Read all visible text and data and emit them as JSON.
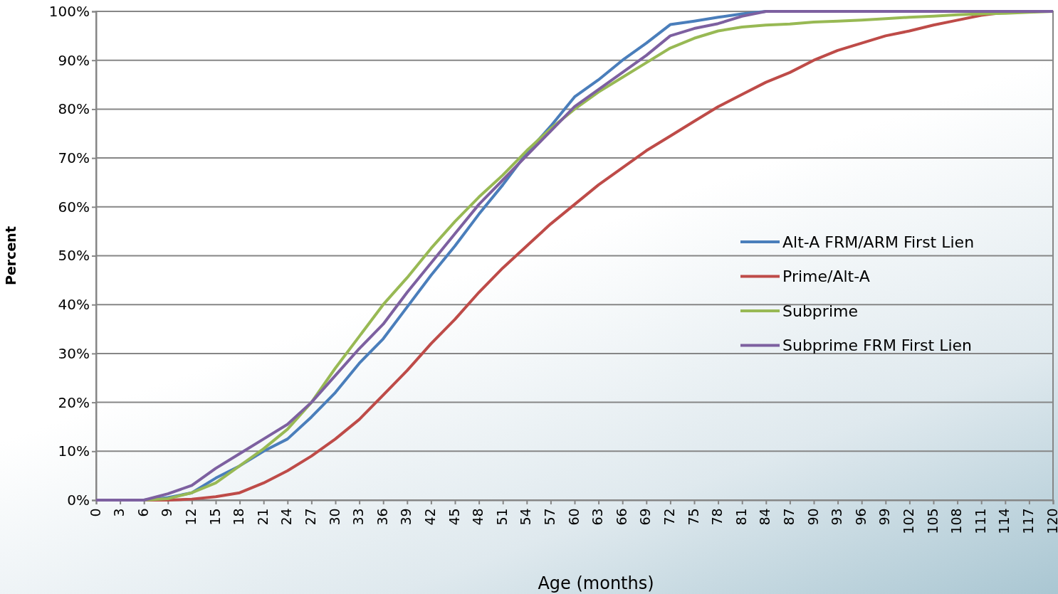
{
  "chart_data": {
    "type": "line",
    "xlabel": "Age (months)",
    "ylabel": "Percent",
    "x": [
      0,
      3,
      6,
      9,
      12,
      15,
      18,
      21,
      24,
      27,
      30,
      33,
      36,
      39,
      42,
      45,
      48,
      51,
      54,
      57,
      60,
      63,
      66,
      69,
      72,
      75,
      78,
      81,
      84,
      87,
      90,
      93,
      96,
      99,
      102,
      105,
      108,
      111,
      114,
      117,
      120
    ],
    "series": [
      {
        "name": "Alt-A FRM/ARM First Lien",
        "color": "#4a7ebb",
        "values": [
          0,
          0,
          0,
          0.5,
          1.5,
          4.5,
          7,
          10,
          12.5,
          17,
          22,
          28,
          33,
          39.5,
          46,
          52,
          58.5,
          64.5,
          71,
          76.5,
          82.5,
          86,
          90,
          93.5,
          97.3,
          98,
          98.8,
          99.5,
          100,
          null,
          null,
          null,
          null,
          null,
          null,
          null,
          null,
          null,
          null,
          null,
          null
        ]
      },
      {
        "name": "Prime/Alt-A",
        "color": "#be4b48",
        "values": [
          0,
          0,
          0,
          0,
          0.2,
          0.7,
          1.5,
          3.5,
          6,
          9,
          12.5,
          16.5,
          21.5,
          26.5,
          32,
          37,
          42.5,
          47.5,
          52,
          56.5,
          60.5,
          64.5,
          68,
          71.5,
          74.5,
          77.5,
          80.5,
          83,
          85.5,
          87.5,
          90,
          92,
          93.5,
          95,
          96,
          97.2,
          98.2,
          99.2,
          99.8,
          100,
          100
        ]
      },
      {
        "name": "Subprime",
        "color": "#98b954",
        "values": [
          0,
          0,
          0,
          0.3,
          1.5,
          3.5,
          7,
          10.5,
          14.5,
          20,
          27,
          33.5,
          40,
          45.5,
          51.5,
          57,
          62,
          66.5,
          71.5,
          76,
          80,
          83.5,
          86.5,
          89.5,
          92.5,
          94.5,
          96,
          96.8,
          97.2,
          97.4,
          97.8,
          98,
          98.2,
          98.5,
          98.8,
          99,
          99.3,
          99.5,
          99.6,
          99.8,
          100
        ]
      },
      {
        "name": "Subprime FRM First Lien",
        "color": "#7d60a0",
        "values": [
          0,
          0,
          0,
          1.3,
          3,
          6.5,
          9.5,
          12.5,
          15.5,
          20,
          25.5,
          31,
          36,
          42.5,
          48.5,
          54.5,
          60.5,
          65.5,
          70.5,
          75.5,
          80.5,
          84,
          87.5,
          91,
          95,
          96.5,
          97.5,
          99,
          100,
          100,
          100,
          100,
          100,
          100,
          100,
          100,
          100,
          100,
          100,
          100,
          100
        ]
      }
    ],
    "xlim": [
      0,
      120
    ],
    "xticks": [
      0,
      3,
      6,
      9,
      12,
      15,
      18,
      21,
      24,
      27,
      30,
      33,
      36,
      39,
      42,
      45,
      48,
      51,
      54,
      57,
      60,
      63,
      66,
      69,
      72,
      75,
      78,
      81,
      84,
      87,
      90,
      93,
      96,
      99,
      102,
      105,
      108,
      111,
      114,
      117,
      120
    ],
    "ylim": [
      0,
      100
    ],
    "yticks": [
      {
        "value": 0,
        "label": "0%"
      },
      {
        "value": 10,
        "label": "10%"
      },
      {
        "value": 20,
        "label": "20%"
      },
      {
        "value": 30,
        "label": "30%"
      },
      {
        "value": 40,
        "label": "40%"
      },
      {
        "value": 50,
        "label": "50%"
      },
      {
        "value": 60,
        "label": "60%"
      },
      {
        "value": 70,
        "label": "70%"
      },
      {
        "value": 80,
        "label": "80%"
      },
      {
        "value": 90,
        "label": "90%"
      },
      {
        "value": 100,
        "label": "100%"
      }
    ],
    "grid": "y",
    "legend": "right",
    "marker": "none",
    "line_style": "solid"
  }
}
